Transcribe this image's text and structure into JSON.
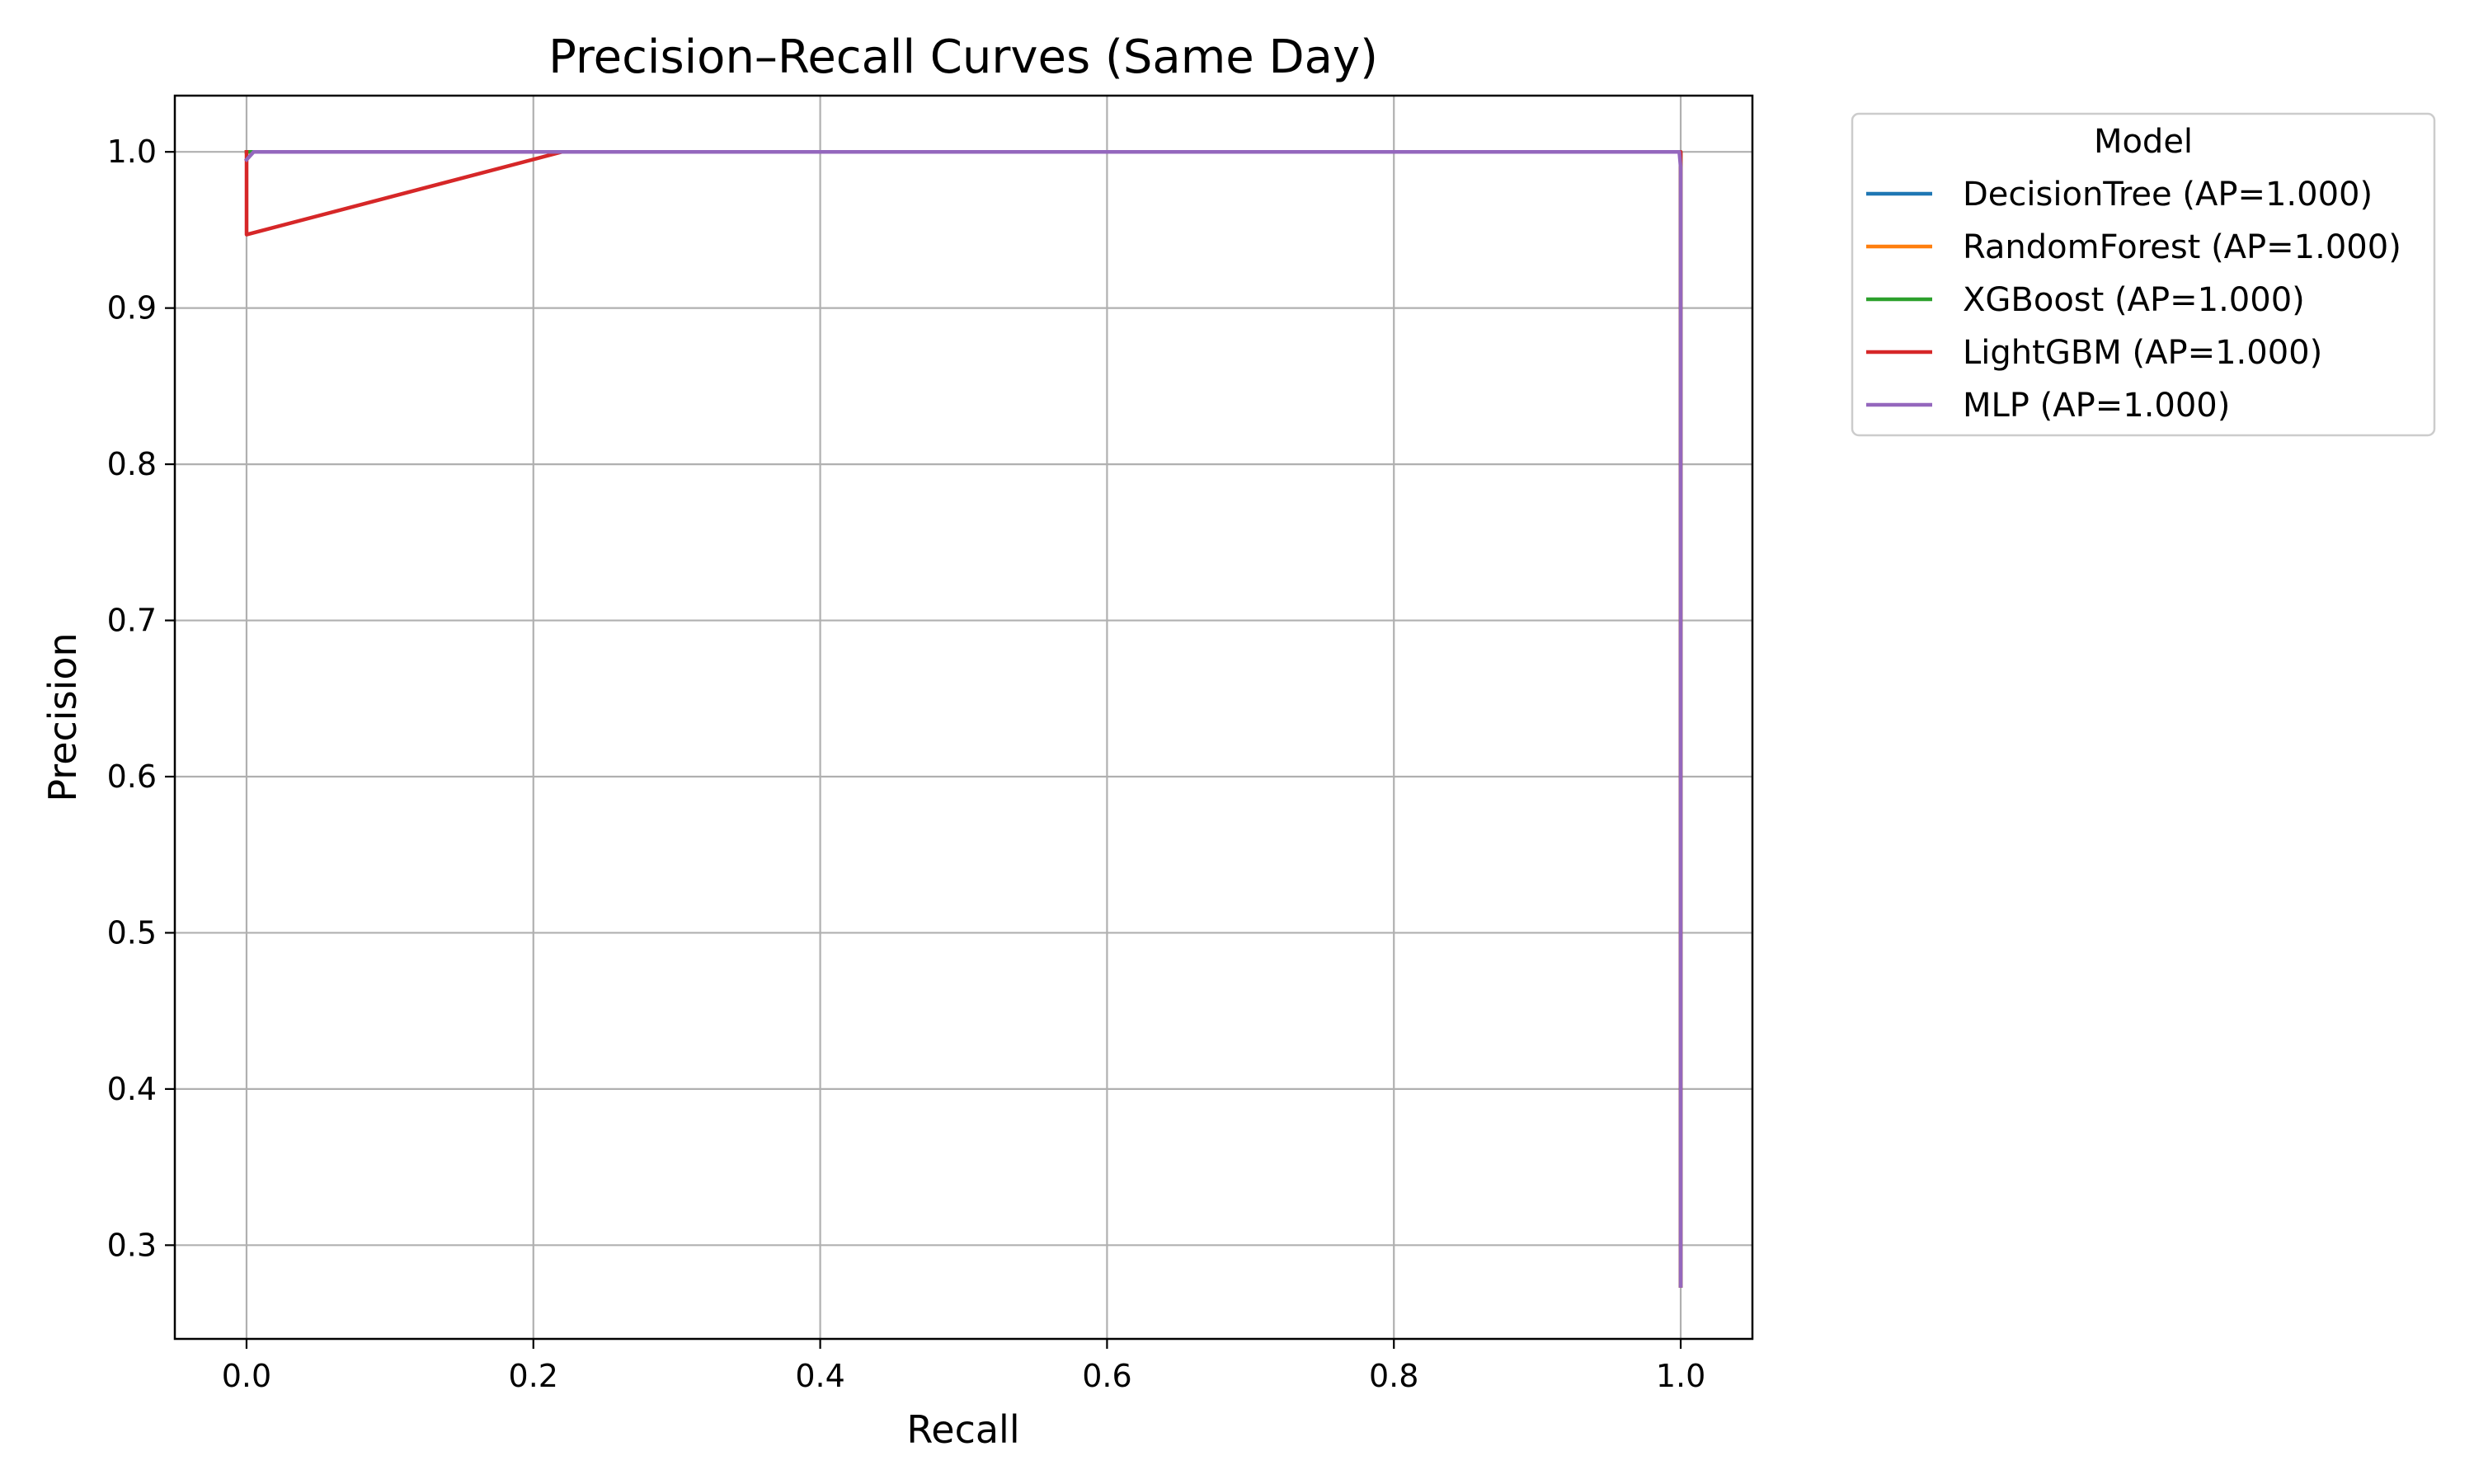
{
  "chart_data": {
    "type": "line",
    "title": "Precision–Recall Curves (Same Day)",
    "xlabel": "Recall",
    "ylabel": "Precision",
    "xlim": [
      -0.05,
      1.05
    ],
    "ylim": [
      0.24,
      1.036
    ],
    "xticks": [
      "0.0",
      "0.2",
      "0.4",
      "0.6",
      "0.8",
      "1.0"
    ],
    "yticks": [
      "0.3",
      "0.4",
      "0.5",
      "0.6",
      "0.7",
      "0.8",
      "0.9",
      "1.0"
    ],
    "grid": true,
    "legend": {
      "title": "Model",
      "placement": "outside-upper-right"
    },
    "series": [
      {
        "name": "DecisionTree (AP=1.000)",
        "color": "#1f77b4",
        "x": [
          1.0,
          1.0,
          0.0
        ],
        "y": [
          0.274,
          1.0,
          1.0
        ]
      },
      {
        "name": "RandomForest (AP=1.000)",
        "color": "#ff7f0e",
        "x": [
          1.0,
          1.0,
          0.0
        ],
        "y": [
          0.274,
          1.0,
          1.0
        ]
      },
      {
        "name": "XGBoost (AP=1.000)",
        "color": "#2ca02c",
        "x": [
          1.0,
          1.0,
          0.0,
          0.0
        ],
        "y": [
          0.274,
          1.0,
          1.0,
          1.0
        ]
      },
      {
        "name": "LightGBM (AP=1.000)",
        "color": "#d62728",
        "x": [
          1.0,
          1.0,
          0.22,
          0.0,
          0.0,
          0.0
        ],
        "y": [
          0.274,
          1.0,
          1.0,
          0.947,
          0.99,
          1.0
        ]
      },
      {
        "name": "MLP (AP=1.000)",
        "color": "#9467bd",
        "x": [
          1.0,
          1.0,
          0.999,
          0.005,
          0.0
        ],
        "y": [
          0.274,
          0.99,
          1.0,
          1.0,
          0.995
        ]
      }
    ]
  }
}
